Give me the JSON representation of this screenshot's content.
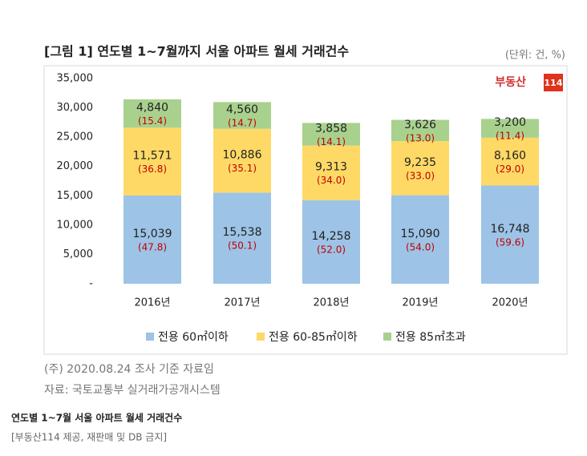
{
  "chart_data": {
    "type": "stacked_bar",
    "title": "[그림 1] 연도별 1~7월까지 서울 아파트 월세 거래건수",
    "unit": "(단위: 건, %)",
    "logo": {
      "name": "부동산",
      "number": "114"
    },
    "categories": [
      "2016년",
      "2017년",
      "2018년",
      "2019년",
      "2020년"
    ],
    "series": [
      {
        "name": "전용 60㎡이하",
        "color": "#9dc3e6",
        "values": [
          15039,
          15538,
          14258,
          15090,
          16748
        ],
        "value_labels": [
          "15,039",
          "15,538",
          "14,258",
          "15,090",
          "16,748"
        ],
        "percents": [
          47.8,
          50.1,
          52.0,
          54.0,
          59.6
        ],
        "percent_labels": [
          "(47.8)",
          "(50.1)",
          "(52.0)",
          "(54.0)",
          "(59.6)"
        ]
      },
      {
        "name": "전용 60-85㎡이하",
        "color": "#ffd966",
        "values": [
          11571,
          10886,
          9313,
          9235,
          8160
        ],
        "value_labels": [
          "11,571",
          "10,886",
          "9,313",
          "9,235",
          "8,160"
        ],
        "percents": [
          36.8,
          35.1,
          34.0,
          33.0,
          29.0
        ],
        "percent_labels": [
          "(36.8)",
          "(35.1)",
          "(34.0)",
          "(33.0)",
          "(29.0)"
        ]
      },
      {
        "name": "전용 85㎡초과",
        "color": "#a9d18e",
        "values": [
          4840,
          4560,
          3858,
          3626,
          3200
        ],
        "value_labels": [
          "4,840",
          "4,560",
          "3,858",
          "3,626",
          "3,200"
        ],
        "percents": [
          15.4,
          14.7,
          14.1,
          13.0,
          11.4
        ],
        "percent_labels": [
          "(15.4)",
          "(14.7)",
          "(14.1)",
          "(13.0)",
          "(11.4)"
        ]
      }
    ],
    "ylim": [
      0,
      35000
    ],
    "yticks": [
      {
        "value": 0,
        "label": "-"
      },
      {
        "value": 5000,
        "label": "5,000"
      },
      {
        "value": 10000,
        "label": "10,000"
      },
      {
        "value": 15000,
        "label": "15,000"
      },
      {
        "value": 20000,
        "label": "20,000"
      },
      {
        "value": 25000,
        "label": "25,000"
      },
      {
        "value": 30000,
        "label": "30,000"
      },
      {
        "value": 35000,
        "label": "35,000"
      }
    ],
    "legend": "bottom",
    "notes": [
      "(주) 2020.08.24 조사 기준 자료임",
      "자료: 국토교통부 실거래가공개시스템"
    ],
    "caption": "연도별 1~7월 서울 아파트 월세 거래건수",
    "credit": "[부동산114 제공, 재판매 및 DB 금지]"
  }
}
